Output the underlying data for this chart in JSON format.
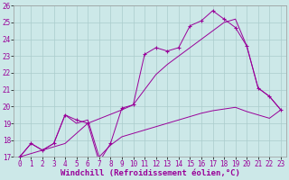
{
  "xlabel": "Windchill (Refroidissement éolien,°C)",
  "xlim": [
    -0.5,
    23.5
  ],
  "ylim": [
    17,
    26
  ],
  "xticks": [
    0,
    1,
    2,
    3,
    4,
    5,
    6,
    7,
    8,
    9,
    10,
    11,
    12,
    13,
    14,
    15,
    16,
    17,
    18,
    19,
    20,
    21,
    22,
    23
  ],
  "yticks": [
    17,
    18,
    19,
    20,
    21,
    22,
    23,
    24,
    25,
    26
  ],
  "bg_color": "#cce8e8",
  "grid_color": "#aacccc",
  "line_color": "#990099",
  "line1_x": [
    0,
    1,
    2,
    3,
    4,
    5,
    6,
    7,
    8,
    9,
    10,
    11,
    12,
    13,
    14,
    15,
    16,
    17,
    18,
    19,
    20,
    21,
    22,
    23
  ],
  "line1_y": [
    17.0,
    17.8,
    17.4,
    17.8,
    19.5,
    19.2,
    19.0,
    16.7,
    17.8,
    19.9,
    20.1,
    23.1,
    23.5,
    23.3,
    23.5,
    24.8,
    25.1,
    25.7,
    25.2,
    24.7,
    23.6,
    21.1,
    20.6,
    19.8
  ],
  "line2_x": [
    0,
    1,
    2,
    3,
    4,
    5,
    6,
    7,
    8,
    9,
    10,
    11,
    12,
    13,
    14,
    15,
    16,
    17,
    18,
    19,
    20,
    21,
    22,
    23
  ],
  "line2_y": [
    17.0,
    17.8,
    17.4,
    17.8,
    19.5,
    19.0,
    19.2,
    17.0,
    17.7,
    18.2,
    18.4,
    18.6,
    18.8,
    19.0,
    19.2,
    19.4,
    19.6,
    19.75,
    19.85,
    19.95,
    19.7,
    19.5,
    19.3,
    19.8
  ],
  "line3_x": [
    0,
    4,
    6,
    9,
    10,
    11,
    12,
    13,
    14,
    15,
    16,
    17,
    18,
    19,
    20,
    21,
    22,
    23
  ],
  "line3_y": [
    17.0,
    17.8,
    19.0,
    19.8,
    20.1,
    21.0,
    21.9,
    22.5,
    23.0,
    23.5,
    24.0,
    24.5,
    25.0,
    25.2,
    23.6,
    21.1,
    20.6,
    19.8
  ],
  "font_family": "monospace",
  "tick_fontsize": 5.5,
  "xlabel_fontsize": 6.5
}
